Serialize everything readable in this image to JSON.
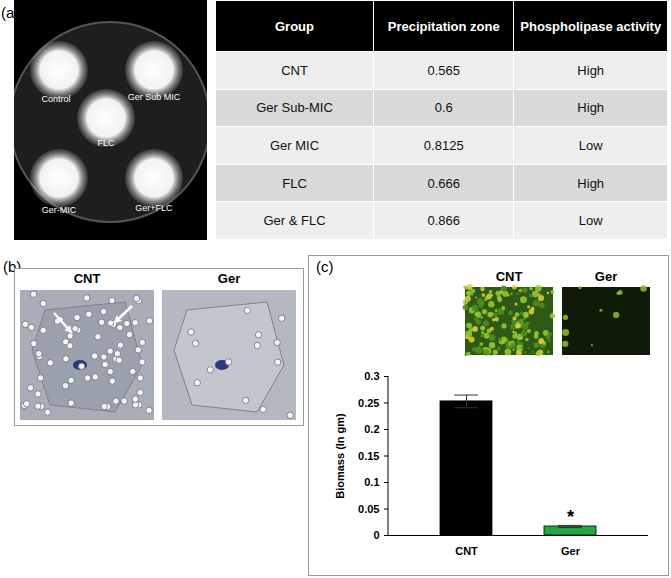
{
  "panels": {
    "a": {
      "label": "(a)",
      "plate_labels": [
        "Control",
        "Ger Sub MIC",
        "FLC",
        "Ger-MIC",
        "Ger+FLC"
      ],
      "table": {
        "header": [
          "Group",
          "Precipitation zone",
          "Phospholipase activity"
        ],
        "rows": [
          [
            "CNT",
            0.565,
            "High"
          ],
          [
            "Ger Sub-MIC",
            0.6,
            "High"
          ],
          [
            "Ger MIC",
            0.8125,
            "Low"
          ],
          [
            "FLC",
            0.666,
            "High"
          ],
          [
            "Ger & FLC",
            0.866,
            "Low"
          ]
        ]
      }
    },
    "b": {
      "label": "(b)",
      "images": [
        "CNT",
        "Ger"
      ]
    },
    "c": {
      "label": "(c)",
      "images": [
        "CNT",
        "Ger"
      ]
    }
  },
  "chart_data": {
    "type": "bar",
    "y_label": "Biomass (In gm)",
    "categories": [
      "CNT",
      "Ger"
    ],
    "values": [
      0.253,
      0.017
    ],
    "errors": [
      0.012,
      0.002
    ],
    "colors": [
      "#000000",
      "#22a83c"
    ],
    "ylim": [
      0,
      0.3
    ],
    "yticks": [
      0,
      0.05,
      0.1,
      0.15,
      0.2,
      0.25,
      0.3
    ],
    "annotations": [
      {
        "category": "Ger",
        "text": "*"
      }
    ]
  }
}
